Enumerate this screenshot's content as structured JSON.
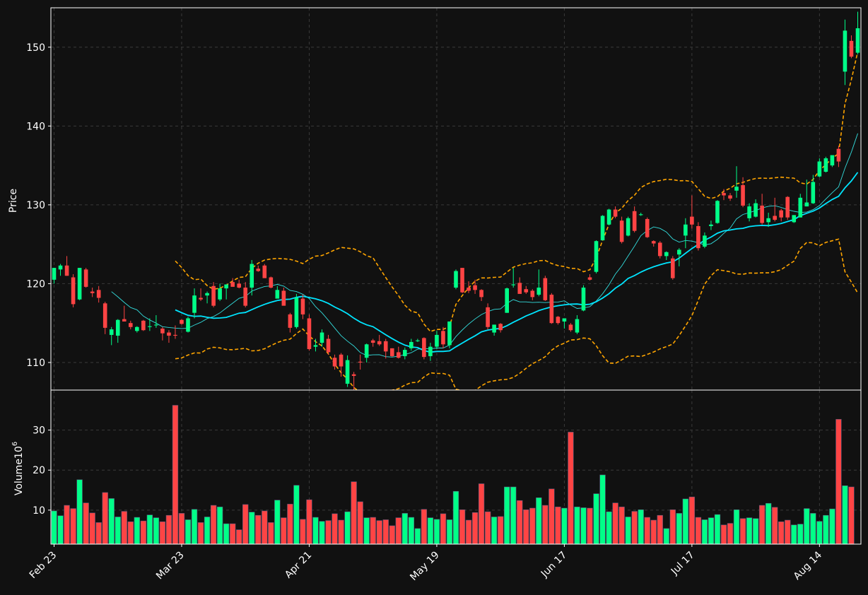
{
  "chart_data": {
    "type": "candlestick",
    "ylabel_price": "Price",
    "ylabel_volume": "Volume",
    "volume_unit_exp": "10",
    "volume_unit_sup": "6",
    "price_ticks": [
      110,
      120,
      130,
      140,
      150
    ],
    "price_ylim": [
      106.5,
      155
    ],
    "volume_ticks": [
      10,
      20,
      30
    ],
    "volume_ylim": [
      1.5,
      40
    ],
    "x_tick_labels": [
      {
        "index": 0,
        "label": "Feb 23"
      },
      {
        "index": 20,
        "label": "Mar 23"
      },
      {
        "index": 40,
        "label": "Apr 21"
      },
      {
        "index": 60,
        "label": "May 19"
      },
      {
        "index": 80,
        "label": "Jun 17"
      },
      {
        "index": 100,
        "label": "Jul 17"
      },
      {
        "index": 120,
        "label": "Aug 14"
      }
    ],
    "colors": {
      "up": "#00ff88",
      "down": "#ff4444",
      "background": "#111111",
      "grid": "#3a3a3a",
      "ma_fast": "#33dddd",
      "ma_slow": "#00e5ff",
      "band": "#ffa500"
    },
    "ohlc": [
      [
        120.5,
        122,
        120,
        122
      ],
      [
        121.8,
        122.5,
        121,
        122.3
      ],
      [
        122.3,
        123.5,
        121,
        121
      ],
      [
        120.8,
        121.2,
        117,
        117.4
      ],
      [
        118,
        122,
        117.9,
        122
      ],
      [
        121.8,
        122,
        119.5,
        119.6
      ],
      [
        119,
        119.5,
        118.3,
        118.8
      ],
      [
        119.2,
        119.7,
        117.6,
        118.2
      ],
      [
        117.5,
        117.7,
        113.6,
        114.4
      ],
      [
        113.5,
        114.5,
        112.2,
        114.2
      ],
      [
        113.4,
        115.5,
        112.5,
        115.4
      ],
      [
        115.5,
        117.2,
        115.2,
        115.2
      ],
      [
        115,
        115.3,
        114.2,
        114.5
      ],
      [
        114,
        114.6,
        113.8,
        114.5
      ],
      [
        115.3,
        115.4,
        114,
        114.1
      ],
      [
        114.5,
        115.6,
        114,
        114.6
      ],
      [
        114.7,
        116,
        114.4,
        114.8
      ],
      [
        114.3,
        114.5,
        112.8,
        113.7
      ],
      [
        113.8,
        114.1,
        112.5,
        113.4
      ],
      [
        113.5,
        114.7,
        113,
        113.4
      ],
      [
        115.4,
        115.5,
        114.8,
        114.9
      ],
      [
        113.9,
        115.8,
        113.8,
        115.6
      ],
      [
        116.3,
        119.4,
        115.6,
        118.5
      ],
      [
        118.2,
        119.4,
        117.8,
        118
      ],
      [
        118.5,
        119,
        117.5,
        118.8
      ],
      [
        119.7,
        120.2,
        117,
        117.2
      ],
      [
        118,
        120,
        117.8,
        119.4
      ],
      [
        119.4,
        119.5,
        118,
        119.9
      ],
      [
        120.2,
        120.7,
        119.7,
        119.6
      ],
      [
        120,
        120.5,
        119.4,
        119.5
      ],
      [
        119.5,
        120.2,
        117,
        117.2
      ],
      [
        119.5,
        123,
        118.5,
        122.5
      ],
      [
        121.9,
        122.3,
        121.5,
        121.6
      ],
      [
        122.3,
        122.5,
        121,
        120.7
      ],
      [
        120.8,
        120.9,
        119.4,
        119.5
      ],
      [
        118.1,
        119.7,
        118.3,
        119.2
      ],
      [
        119.1,
        119.5,
        117.5,
        117.2
      ],
      [
        116.1,
        116.3,
        113.8,
        114.4
      ],
      [
        114.5,
        118.7,
        114.3,
        118.2
      ],
      [
        118.1,
        118.6,
        115.5,
        116.1
      ],
      [
        115.6,
        116.1,
        111.5,
        111.7
      ],
      [
        112,
        113,
        111.4,
        112.2
      ],
      [
        112.5,
        114.2,
        112,
        113.8
      ],
      [
        113,
        113.5,
        111,
        111.3
      ],
      [
        110.6,
        111,
        109.1,
        109.5
      ],
      [
        111,
        111.2,
        108.2,
        109.5
      ],
      [
        107.3,
        110.9,
        106.9,
        110.3
      ],
      [
        108.5,
        108.8,
        106.2,
        108.3
      ],
      [
        110.1,
        111,
        109.1,
        110
      ],
      [
        110.6,
        112.4,
        110,
        112.3
      ],
      [
        112.8,
        113,
        112,
        112.5
      ],
      [
        112.7,
        113.5,
        112.1,
        112.3
      ],
      [
        112.7,
        113,
        110.5,
        111.4
      ],
      [
        111.8,
        111.8,
        110.7,
        110.8
      ],
      [
        111.3,
        112,
        110.5,
        110.6
      ],
      [
        110.8,
        111.9,
        110.4,
        111.6
      ],
      [
        111.8,
        113,
        111.5,
        112.6
      ],
      [
        112.7,
        113,
        112.6,
        112.8
      ],
      [
        113.1,
        113.2,
        110.4,
        110.7
      ],
      [
        110.8,
        112.5,
        110.2,
        112
      ],
      [
        112,
        114,
        111.7,
        113.5
      ],
      [
        114,
        114.5,
        111.8,
        112.3
      ],
      [
        112.2,
        115.2,
        111.8,
        115.2
      ],
      [
        119.5,
        121.8,
        119.3,
        121.6
      ],
      [
        122,
        122,
        118.8,
        118.9
      ],
      [
        119.5,
        120.3,
        118.8,
        119.1
      ],
      [
        119.8,
        120.5,
        118.7,
        119.2
      ],
      [
        119.2,
        119.3,
        117.8,
        118.3
      ],
      [
        117,
        117.5,
        114.2,
        114.5
      ],
      [
        113.8,
        114.8,
        113.4,
        114.8
      ],
      [
        114.9,
        115,
        113.8,
        114.1
      ],
      [
        116.3,
        119.5,
        116.3,
        119.4
      ],
      [
        119.8,
        122,
        119.5,
        119.9
      ],
      [
        120.1,
        120.8,
        118.8,
        118.7
      ],
      [
        119.3,
        119.7,
        118.7,
        118.9
      ],
      [
        119.1,
        119.3,
        117.9,
        118.3
      ],
      [
        118.6,
        121.8,
        118.4,
        119.5
      ],
      [
        120.7,
        121,
        117.8,
        117.9
      ],
      [
        118.6,
        118.8,
        114.9,
        115
      ],
      [
        115.8,
        115.9,
        114.8,
        115
      ],
      [
        115.2,
        115.6,
        114.3,
        115.6
      ],
      [
        114.8,
        115,
        113.9,
        114.1
      ],
      [
        113.8,
        116,
        113.6,
        115.5
      ],
      [
        116.6,
        119.8,
        116.5,
        119.5
      ],
      [
        120.8,
        121.2,
        120.4,
        120.5
      ],
      [
        121.5,
        125.5,
        121.3,
        125.4
      ],
      [
        125.5,
        128.7,
        125.5,
        128.6
      ],
      [
        127.5,
        129.5,
        127.4,
        129.4
      ],
      [
        129.4,
        129.8,
        128.3,
        128.5
      ],
      [
        128,
        128.5,
        125.1,
        125.3
      ],
      [
        126.1,
        128.5,
        126,
        128.3
      ],
      [
        129.2,
        129.8,
        126.5,
        126.7
      ],
      [
        128.7,
        129,
        128.6,
        128.8
      ],
      [
        128.2,
        128.4,
        125.8,
        125.9
      ],
      [
        125.4,
        125.5,
        124.7,
        125.1
      ],
      [
        125.2,
        125.4,
        123.2,
        123.5
      ],
      [
        123.5,
        124.1,
        123,
        124
      ],
      [
        123.2,
        123.5,
        120.5,
        120.7
      ],
      [
        123.7,
        124.5,
        122.2,
        124.3
      ],
      [
        126.1,
        128.3,
        124.5,
        127.5
      ],
      [
        128.5,
        131.2,
        127,
        127.5
      ],
      [
        127.3,
        127.8,
        124.2,
        124.5
      ],
      [
        124.7,
        126.5,
        124.5,
        126.1
      ],
      [
        127.3,
        128,
        126.8,
        127.5
      ],
      [
        127.7,
        130.6,
        127.6,
        130.5
      ],
      [
        131.5,
        132,
        130.6,
        131.2
      ],
      [
        131.2,
        131.5,
        130.5,
        130.8
      ],
      [
        131.8,
        134.9,
        130.9,
        132.3
      ],
      [
        132.5,
        133.5,
        129.7,
        129.9
      ],
      [
        128.3,
        130.2,
        127.9,
        129.8
      ],
      [
        128.5,
        130.7,
        128.4,
        130.2
      ],
      [
        129.9,
        131.4,
        127.5,
        127.7
      ],
      [
        127.8,
        129,
        127.2,
        128.3
      ],
      [
        128.6,
        130.9,
        127.9,
        128.1
      ],
      [
        129.3,
        129.5,
        127.9,
        128.4
      ],
      [
        131,
        131.1,
        128.1,
        128.4
      ],
      [
        127.8,
        128.5,
        127.7,
        128.7
      ],
      [
        128.4,
        131.4,
        128.4,
        130.9
      ],
      [
        129.8,
        133.2,
        129.8,
        130.3
      ],
      [
        130.2,
        133.8,
        130.1,
        132.9
      ],
      [
        133.6,
        135.9,
        133.5,
        135.5
      ],
      [
        134.2,
        136.1,
        134.1,
        135.9
      ],
      [
        135,
        136.2,
        134.8,
        136.3
      ],
      [
        137.1,
        137.5,
        134.8,
        135.5
      ],
      [
        146.9,
        153.5,
        145.2,
        152.1
      ],
      [
        150.8,
        151.5,
        148.6,
        148.8
      ],
      [
        149.3,
        154.5,
        149.1,
        152.4
      ]
    ],
    "volume": [
      9.8,
      8.6,
      11.2,
      10.4,
      17.6,
      11.8,
      9.3,
      6.9,
      14.4,
      12.9,
      8.3,
      9.7,
      7.1,
      8.2,
      7.3,
      8.8,
      8.1,
      7.1,
      8.7,
      36.2,
      9.2,
      7.6,
      10.2,
      6.9,
      8.3,
      11.2,
      10.8,
      6.6,
      6.6,
      5.1,
      11.4,
      9.5,
      8.7,
      9.8,
      6.9,
      12.5,
      8.1,
      11.5,
      16.2,
      7.7,
      12.6,
      8.2,
      7.2,
      7.4,
      9.1,
      7.5,
      9.6,
      17.1,
      12.1,
      8.1,
      8.2,
      7.4,
      7.6,
      6.1,
      8.1,
      9.2,
      8.2,
      5.4,
      10.2,
      8.1,
      7.7,
      9.1,
      7.6,
      14.7,
      10.1,
      7.5,
      9.4,
      16.6,
      9.6,
      8.3,
      8.4,
      15.8,
      15.8,
      12.4,
      10.1,
      10.5,
      13.1,
      11.2,
      15.3,
      10.8,
      10.5,
      29.5,
      10.8,
      10.6,
      10.5,
      14.1,
      18.8,
      9.6,
      11.8,
      10.8,
      8.3,
      9.7,
      10.1,
      8.2,
      7.5,
      8.7,
      5.4,
      10.1,
      9.2,
      12.8,
      13.3,
      8.2,
      7.6,
      8.1,
      8.9,
      6.3,
      6.7,
      10.1,
      7.9,
      8.1,
      7.9,
      11.2,
      11.7,
      10.7,
      7.1,
      7.5,
      6.3,
      6.5,
      10.4,
      9.2,
      7.2,
      8.7,
      10.3,
      32.7,
      16.1,
      15.8
    ],
    "ma_fast_period": 5,
    "ma_slow_period": 10
  }
}
